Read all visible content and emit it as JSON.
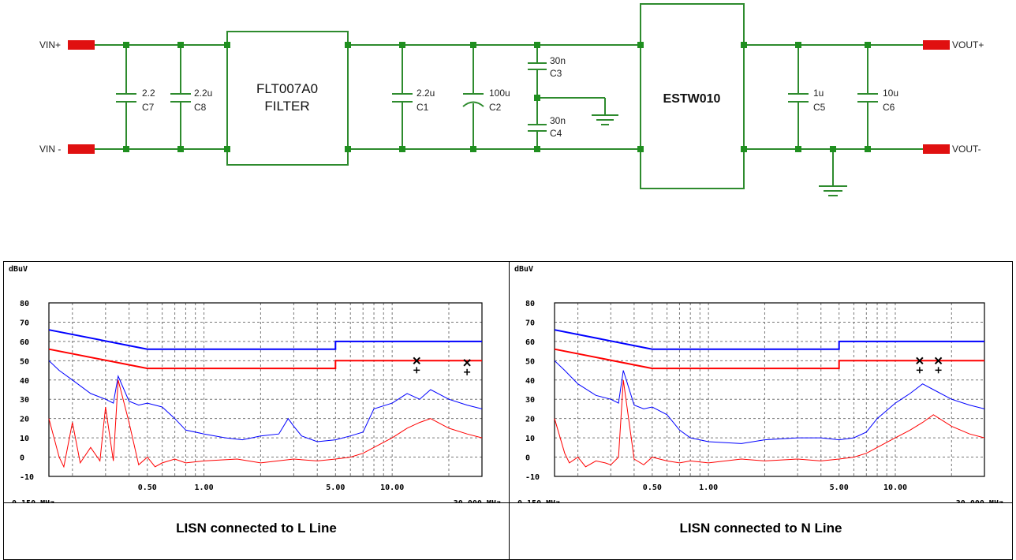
{
  "schematic": {
    "terminals": {
      "vin_plus": "VIN+",
      "vin_minus": "VIN -",
      "vout_plus": "VOUT+",
      "vout_minus": "VOUT-"
    },
    "blocks": {
      "filter_line1": "FLT007A0",
      "filter_line2": "FILTER",
      "converter": "ESTW010"
    },
    "capacitors": [
      {
        "ref": "C7",
        "value": "2.2"
      },
      {
        "ref": "C8",
        "value": "2.2u"
      },
      {
        "ref": "C1",
        "value": "2.2u"
      },
      {
        "ref": "C2",
        "value": "100u"
      },
      {
        "ref": "C3",
        "value": "30n"
      },
      {
        "ref": "C4",
        "value": "30n"
      },
      {
        "ref": "C5",
        "value": "1u"
      },
      {
        "ref": "C6",
        "value": "10u"
      }
    ],
    "colors": {
      "wire": "#2e8b2e",
      "node": "#1f8f1f",
      "terminal": "#e01010"
    }
  },
  "plots": [
    {
      "caption": "LISN connected to L Line",
      "ylabel": "dBuV",
      "x_start": "0.150 MHz",
      "x_end": "30.000 MHz"
    },
    {
      "caption": "LISN connected to N Line",
      "ylabel": "dBuV",
      "x_start": "0.150 MHz",
      "x_end": "30.000 MHz"
    }
  ],
  "chart_data": [
    {
      "type": "line",
      "title": "LISN connected to L Line",
      "ylabel": "dBuV",
      "xscale": "log",
      "xlim": [
        0.15,
        30
      ],
      "ylim": [
        -10,
        80
      ],
      "yticks": [
        "80",
        "70",
        "60",
        "50",
        "40",
        "30",
        "20",
        "10",
        "0",
        "-10"
      ],
      "xticks": [
        {
          "v": 0.5,
          "label": "0.50"
        },
        {
          "v": 1,
          "label": "1.00"
        },
        {
          "v": 5,
          "label": "5.00"
        },
        {
          "v": 10,
          "label": "10.00"
        }
      ],
      "grid": true,
      "series": [
        {
          "color": "#0000ff",
          "x": [
            0.15,
            0.5,
            5,
            5,
            30
          ],
          "values": [
            66,
            56,
            56,
            60,
            60
          ]
        },
        {
          "color": "#ff0000",
          "x": [
            0.15,
            0.5,
            5,
            5,
            30
          ],
          "values": [
            56,
            46,
            46,
            50,
            50
          ]
        },
        {
          "color": "#0000ff",
          "x": [
            0.15,
            0.17,
            0.2,
            0.25,
            0.3,
            0.33,
            0.35,
            0.4,
            0.45,
            0.5,
            0.6,
            0.7,
            0.8,
            1,
            1.3,
            1.6,
            2,
            2.5,
            2.8,
            3,
            3.3,
            4,
            5,
            6,
            7,
            8,
            10,
            12,
            14,
            16,
            20,
            25,
            30
          ],
          "values": [
            50,
            45,
            40,
            33,
            30,
            28,
            42,
            29,
            27,
            28,
            26,
            20,
            14,
            12,
            10,
            9,
            11,
            12,
            20,
            16,
            11,
            8,
            9,
            11,
            13,
            25,
            28,
            33,
            30,
            35,
            30,
            27,
            25
          ]
        },
        {
          "color": "#ff0000",
          "x": [
            0.15,
            0.17,
            0.18,
            0.2,
            0.22,
            0.25,
            0.28,
            0.3,
            0.33,
            0.35,
            0.4,
            0.45,
            0.5,
            0.55,
            0.6,
            0.7,
            0.8,
            1,
            1.5,
            2,
            3,
            4,
            5,
            6,
            7,
            8,
            10,
            12,
            14,
            16,
            20,
            25,
            30
          ],
          "values": [
            20,
            0,
            -5,
            18,
            -3,
            5,
            -2,
            26,
            -2,
            40,
            18,
            -4,
            0,
            -5,
            -3,
            -1,
            -3,
            -2,
            -1,
            -3,
            -1,
            -2,
            -1,
            0,
            2,
            5,
            10,
            15,
            18,
            20,
            15,
            12,
            10
          ]
        }
      ],
      "markers": [
        {
          "x": 13.5,
          "y": 50
        },
        {
          "x": 25,
          "y": 49
        }
      ]
    },
    {
      "type": "line",
      "title": "LISN connected to N Line",
      "ylabel": "dBuV",
      "xscale": "log",
      "xlim": [
        0.15,
        30
      ],
      "ylim": [
        -10,
        80
      ],
      "yticks": [
        "80",
        "70",
        "60",
        "50",
        "40",
        "30",
        "20",
        "10",
        "0",
        "-10"
      ],
      "xticks": [
        {
          "v": 0.5,
          "label": "0.50"
        },
        {
          "v": 1,
          "label": "1.00"
        },
        {
          "v": 5,
          "label": "5.00"
        },
        {
          "v": 10,
          "label": "10.00"
        }
      ],
      "grid": true,
      "series": [
        {
          "color": "#0000ff",
          "x": [
            0.15,
            0.5,
            5,
            5,
            30
          ],
          "values": [
            66,
            56,
            56,
            60,
            60
          ]
        },
        {
          "color": "#ff0000",
          "x": [
            0.15,
            0.5,
            5,
            5,
            30
          ],
          "values": [
            56,
            46,
            46,
            50,
            50
          ]
        },
        {
          "color": "#0000ff",
          "x": [
            0.15,
            0.17,
            0.2,
            0.25,
            0.3,
            0.33,
            0.35,
            0.4,
            0.45,
            0.5,
            0.6,
            0.7,
            0.8,
            1,
            1.5,
            2,
            3,
            4,
            5,
            6,
            7,
            8,
            10,
            12,
            14,
            16,
            20,
            25,
            30
          ],
          "values": [
            50,
            45,
            38,
            32,
            30,
            28,
            45,
            27,
            25,
            26,
            22,
            14,
            10,
            8,
            7,
            9,
            10,
            10,
            9,
            10,
            13,
            20,
            28,
            33,
            38,
            35,
            30,
            27,
            25
          ]
        },
        {
          "color": "#ff0000",
          "x": [
            0.15,
            0.17,
            0.18,
            0.2,
            0.22,
            0.25,
            0.28,
            0.3,
            0.33,
            0.35,
            0.4,
            0.45,
            0.5,
            0.6,
            0.7,
            0.8,
            1,
            1.5,
            2,
            3,
            4,
            5,
            6,
            7,
            8,
            10,
            12,
            14,
            16,
            20,
            25,
            30
          ],
          "values": [
            20,
            2,
            -3,
            0,
            -5,
            -2,
            -3,
            -4,
            0,
            40,
            -1,
            -4,
            0,
            -2,
            -3,
            -2,
            -3,
            -1,
            -2,
            -1,
            -2,
            -1,
            0,
            2,
            5,
            10,
            14,
            18,
            22,
            16,
            12,
            10
          ]
        }
      ],
      "markers": [
        {
          "x": 13.5,
          "y": 50
        },
        {
          "x": 17,
          "y": 50
        }
      ]
    }
  ]
}
